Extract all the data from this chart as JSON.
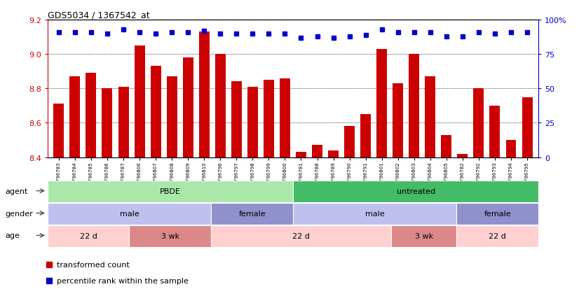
{
  "title": "GDS5034 / 1367542_at",
  "samples": [
    "GSM796783",
    "GSM796784",
    "GSM796785",
    "GSM796786",
    "GSM796787",
    "GSM796806",
    "GSM796807",
    "GSM796808",
    "GSM796809",
    "GSM796810",
    "GSM796796",
    "GSM796797",
    "GSM796798",
    "GSM796799",
    "GSM796800",
    "GSM796781",
    "GSM796788",
    "GSM796789",
    "GSM796790",
    "GSM796791",
    "GSM796801",
    "GSM796802",
    "GSM796803",
    "GSM796804",
    "GSM796805",
    "GSM796782",
    "GSM796792",
    "GSM796793",
    "GSM796794",
    "GSM796795"
  ],
  "bar_values": [
    8.71,
    8.87,
    8.89,
    8.8,
    8.81,
    9.05,
    8.93,
    8.87,
    8.98,
    9.13,
    9.0,
    8.84,
    8.81,
    8.85,
    8.86,
    8.43,
    8.47,
    8.44,
    8.58,
    8.65,
    9.03,
    8.83,
    9.0,
    8.87,
    8.53,
    8.42,
    8.8,
    8.7,
    8.5,
    8.75
  ],
  "percentile_values": [
    91,
    91,
    91,
    90,
    93,
    91,
    90,
    91,
    91,
    92,
    90,
    90,
    90,
    90,
    90,
    87,
    88,
    87,
    88,
    89,
    93,
    91,
    91,
    91,
    88,
    88,
    91,
    90,
    91,
    91
  ],
  "ylim": [
    8.4,
    9.2
  ],
  "yticks": [
    8.4,
    8.6,
    8.8,
    9.0,
    9.2
  ],
  "right_yticks": [
    0,
    25,
    50,
    75,
    100
  ],
  "bar_color": "#cc0000",
  "dot_color": "#0000cc",
  "gridline_y": [
    8.6,
    8.8,
    9.0
  ],
  "agent_groups": [
    {
      "label": "PBDE",
      "start": 0,
      "end": 15,
      "color": "#aae8aa"
    },
    {
      "label": "untreated",
      "start": 15,
      "end": 30,
      "color": "#44bb66"
    }
  ],
  "gender_groups": [
    {
      "label": "male",
      "start": 0,
      "end": 10,
      "color": "#c0c0ee"
    },
    {
      "label": "female",
      "start": 10,
      "end": 15,
      "color": "#9090cc"
    },
    {
      "label": "male",
      "start": 15,
      "end": 25,
      "color": "#c0c0ee"
    },
    {
      "label": "female",
      "start": 25,
      "end": 30,
      "color": "#9090cc"
    }
  ],
  "age_groups": [
    {
      "label": "22 d",
      "start": 0,
      "end": 5,
      "color": "#ffd0d0"
    },
    {
      "label": "3 wk",
      "start": 5,
      "end": 10,
      "color": "#dd8888"
    },
    {
      "label": "22 d",
      "start": 10,
      "end": 21,
      "color": "#ffd0d0"
    },
    {
      "label": "3 wk",
      "start": 21,
      "end": 25,
      "color": "#dd8888"
    },
    {
      "label": "22 d",
      "start": 25,
      "end": 30,
      "color": "#ffd0d0"
    }
  ],
  "legend_bar_label": "transformed count",
  "legend_dot_label": "percentile rank within the sample",
  "n_samples": 30
}
